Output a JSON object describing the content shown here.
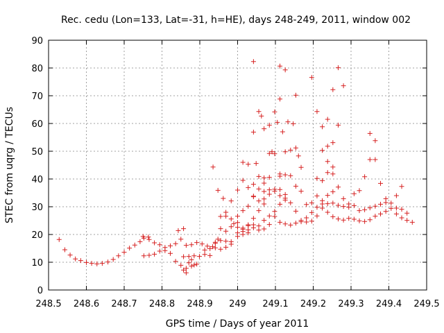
{
  "chart_data": {
    "type": "scatter",
    "title": "Rec. cedu (Lon=133, Lat=-31, h=HE), days 248-249, 2011, window 002",
    "xlabel": "GPS time / Days of year 2011",
    "ylabel": "STEC from uqrg / TECUs",
    "xlim": [
      248.5,
      249.5
    ],
    "ylim": [
      0,
      90
    ],
    "xticks": [
      "248.5",
      "248.6",
      "248.7",
      "248.8",
      "248.9",
      "249",
      "249.1",
      "249.2",
      "249.3",
      "249.4",
      "249.5"
    ],
    "yticks": [
      "0",
      "10",
      "20",
      "30",
      "40",
      "50",
      "60",
      "70",
      "80",
      "90"
    ],
    "grid": true,
    "marker": "plus",
    "marker_color": "#d62020",
    "points": [
      [
        248.528,
        18.2
      ],
      [
        248.543,
        14.5
      ],
      [
        248.557,
        12.6
      ],
      [
        248.571,
        11.2
      ],
      [
        248.585,
        10.6
      ],
      [
        248.6,
        9.9
      ],
      [
        248.614,
        9.6
      ],
      [
        248.628,
        9.4
      ],
      [
        248.642,
        9.6
      ],
      [
        248.657,
        10.1
      ],
      [
        248.671,
        11.0
      ],
      [
        248.685,
        12.3
      ],
      [
        248.7,
        13.6
      ],
      [
        248.714,
        15.1
      ],
      [
        248.728,
        16.2
      ],
      [
        248.742,
        17.4
      ],
      [
        248.75,
        19.3
      ],
      [
        248.764,
        19.1
      ],
      [
        248.752,
        18.7
      ],
      [
        248.766,
        18.2
      ],
      [
        248.78,
        17.0
      ],
      [
        248.794,
        16.3
      ],
      [
        248.808,
        15.3
      ],
      [
        248.822,
        15.9
      ],
      [
        248.836,
        16.7
      ],
      [
        248.85,
        18.3
      ],
      [
        248.864,
        16.1
      ],
      [
        248.878,
        16.3
      ],
      [
        248.892,
        17.1
      ],
      [
        248.906,
        16.6
      ],
      [
        248.92,
        15.8
      ],
      [
        248.752,
        12.3
      ],
      [
        248.766,
        12.5
      ],
      [
        248.78,
        12.9
      ],
      [
        248.794,
        14.0
      ],
      [
        248.808,
        14.2
      ],
      [
        248.822,
        13.2
      ],
      [
        248.836,
        10.3
      ],
      [
        248.85,
        8.9
      ],
      [
        248.864,
        7.8
      ],
      [
        248.878,
        8.6
      ],
      [
        248.892,
        9.3
      ],
      [
        248.843,
        21.4
      ],
      [
        248.857,
        22.1
      ],
      [
        248.857,
        7.2
      ],
      [
        248.864,
        6.2
      ],
      [
        248.871,
        9.8
      ],
      [
        248.878,
        10.9
      ],
      [
        248.885,
        9.0
      ],
      [
        248.857,
        12.0
      ],
      [
        248.871,
        12.1
      ],
      [
        248.885,
        12.3
      ],
      [
        248.899,
        12.1
      ],
      [
        248.913,
        12.8
      ],
      [
        248.927,
        12.4
      ],
      [
        248.934,
        15.6
      ],
      [
        248.941,
        16.8
      ],
      [
        248.948,
        18.3
      ],
      [
        248.913,
        14.4
      ],
      [
        248.927,
        14.9
      ],
      [
        248.941,
        15.2
      ],
      [
        248.955,
        14.7
      ],
      [
        248.969,
        15.4
      ],
      [
        248.983,
        16.5
      ],
      [
        248.941,
        17.2
      ],
      [
        248.955,
        17.8
      ],
      [
        248.969,
        17.6
      ],
      [
        248.983,
        17.4
      ],
      [
        248.935,
        44.3
      ],
      [
        248.948,
        35.9
      ],
      [
        248.962,
        33.0
      ],
      [
        248.955,
        26.5
      ],
      [
        248.969,
        26.6
      ],
      [
        248.983,
        25.6
      ],
      [
        248.969,
        28.0
      ],
      [
        248.983,
        32.1
      ],
      [
        248.955,
        22.1
      ],
      [
        248.969,
        21.2
      ],
      [
        248.983,
        22.8
      ],
      [
        248.99,
        23.9
      ],
      [
        249.0,
        24.3
      ],
      [
        249.014,
        21.9
      ],
      [
        249.028,
        23.5
      ],
      [
        249.042,
        25.8
      ],
      [
        249.056,
        28.6
      ],
      [
        249.07,
        31.0
      ],
      [
        249.0,
        22.6
      ],
      [
        249.014,
        22.3
      ],
      [
        249.028,
        23.2
      ],
      [
        249.042,
        23.5
      ],
      [
        249.056,
        23.1
      ],
      [
        249.07,
        25.1
      ],
      [
        249.084,
        26.7
      ],
      [
        249.098,
        28.3
      ],
      [
        249.112,
        30.9
      ],
      [
        249.126,
        33.1
      ],
      [
        249.0,
        20.6
      ],
      [
        249.014,
        21.1
      ],
      [
        249.028,
        21.7
      ],
      [
        249.042,
        22.4
      ],
      [
        249.056,
        21.6
      ],
      [
        249.07,
        22.0
      ],
      [
        249.084,
        23.6
      ],
      [
        249.0,
        19.3
      ],
      [
        249.014,
        20.0
      ],
      [
        249.028,
        20.6
      ],
      [
        249.0,
        36.0
      ],
      [
        249.014,
        39.5
      ],
      [
        249.028,
        36.9
      ],
      [
        249.042,
        33.8
      ],
      [
        249.056,
        32.1
      ],
      [
        249.07,
        32.8
      ],
      [
        249.084,
        34.5
      ],
      [
        249.098,
        36.3
      ],
      [
        249.112,
        34.0
      ],
      [
        249.126,
        32.4
      ],
      [
        249.0,
        26.6
      ],
      [
        249.014,
        28.6
      ],
      [
        249.028,
        30.2
      ],
      [
        249.042,
        33.6
      ],
      [
        249.056,
        36.4
      ],
      [
        249.07,
        40.4
      ],
      [
        249.084,
        40.6
      ],
      [
        249.098,
        49.1
      ],
      [
        249.112,
        41.0
      ],
      [
        249.126,
        41.5
      ],
      [
        249.14,
        41.2
      ],
      [
        249.154,
        37.4
      ],
      [
        249.168,
        35.6
      ],
      [
        249.014,
        46.0
      ],
      [
        249.028,
        45.3
      ],
      [
        249.042,
        56.9
      ],
      [
        249.049,
        45.6
      ],
      [
        249.056,
        64.3
      ],
      [
        249.063,
        62.7
      ],
      [
        249.07,
        58.1
      ],
      [
        249.084,
        59.4
      ],
      [
        249.091,
        49.8
      ],
      [
        249.098,
        64.2
      ],
      [
        249.105,
        60.4
      ],
      [
        249.112,
        68.8
      ],
      [
        249.119,
        57.0
      ],
      [
        249.126,
        49.8
      ],
      [
        249.14,
        50.4
      ],
      [
        249.147,
        59.9
      ],
      [
        249.154,
        70.2
      ],
      [
        249.133,
        60.6
      ],
      [
        249.042,
        82.3
      ],
      [
        249.112,
        80.7
      ],
      [
        249.126,
        79.3
      ],
      [
        249.154,
        51.2
      ],
      [
        249.161,
        48.3
      ],
      [
        249.168,
        44.2
      ],
      [
        249.112,
        41.8
      ],
      [
        249.07,
        35.5
      ],
      [
        249.084,
        49.2
      ],
      [
        249.042,
        38.1
      ],
      [
        249.056,
        40.9
      ],
      [
        249.07,
        38.5
      ],
      [
        249.084,
        36.1
      ],
      [
        249.098,
        35.6
      ],
      [
        249.112,
        36.2
      ],
      [
        249.126,
        34.4
      ],
      [
        249.14,
        31.4
      ],
      [
        249.154,
        28.4
      ],
      [
        249.168,
        25.1
      ],
      [
        249.182,
        24.5
      ],
      [
        249.196,
        24.8
      ],
      [
        249.21,
        26.7
      ],
      [
        249.224,
        29.5
      ],
      [
        249.238,
        31.1
      ],
      [
        249.252,
        31.3
      ],
      [
        249.266,
        30.5
      ],
      [
        249.098,
        26.5
      ],
      [
        249.112,
        24.4
      ],
      [
        249.126,
        23.8
      ],
      [
        249.14,
        23.4
      ],
      [
        249.154,
        24.1
      ],
      [
        249.168,
        24.6
      ],
      [
        249.182,
        26.0
      ],
      [
        249.196,
        27.9
      ],
      [
        249.21,
        29.8
      ],
      [
        249.224,
        32.2
      ],
      [
        249.238,
        34.1
      ],
      [
        249.252,
        35.4
      ],
      [
        249.182,
        30.8
      ],
      [
        249.196,
        31.4
      ],
      [
        249.21,
        33.9
      ],
      [
        249.224,
        31.0
      ],
      [
        249.238,
        28.0
      ],
      [
        249.252,
        26.4
      ],
      [
        249.266,
        25.6
      ],
      [
        249.28,
        25.2
      ],
      [
        249.294,
        25.8
      ],
      [
        249.308,
        25.5
      ],
      [
        249.322,
        24.9
      ],
      [
        249.336,
        24.7
      ],
      [
        249.35,
        25.3
      ],
      [
        249.364,
        26.6
      ],
      [
        249.378,
        27.4
      ],
      [
        249.392,
        28.3
      ],
      [
        249.406,
        29.4
      ],
      [
        249.42,
        29.5
      ],
      [
        249.434,
        29.1
      ],
      [
        249.448,
        27.7
      ],
      [
        249.28,
        30.1
      ],
      [
        249.294,
        31.0
      ],
      [
        249.308,
        30.4
      ],
      [
        249.322,
        28.6
      ],
      [
        249.336,
        28.9
      ],
      [
        249.35,
        29.6
      ],
      [
        249.364,
        30.2
      ],
      [
        249.378,
        30.9
      ],
      [
        249.392,
        32.9
      ],
      [
        249.406,
        31.3
      ],
      [
        249.42,
        27.4
      ],
      [
        249.434,
        26.0
      ],
      [
        249.448,
        25.1
      ],
      [
        249.462,
        24.4
      ],
      [
        249.196,
        76.6
      ],
      [
        249.21,
        64.3
      ],
      [
        249.224,
        58.8
      ],
      [
        249.238,
        61.5
      ],
      [
        249.252,
        72.2
      ],
      [
        249.266,
        80.1
      ],
      [
        249.28,
        73.6
      ],
      [
        249.266,
        59.4
      ],
      [
        249.252,
        53.1
      ],
      [
        249.238,
        51.8
      ],
      [
        249.224,
        50.3
      ],
      [
        249.238,
        46.3
      ],
      [
        249.252,
        44.3
      ],
      [
        249.238,
        42.3
      ],
      [
        249.252,
        41.8
      ],
      [
        249.224,
        39.4
      ],
      [
        249.21,
        40.2
      ],
      [
        249.266,
        37.1
      ],
      [
        249.28,
        32.9
      ],
      [
        249.294,
        29.8
      ],
      [
        249.308,
        34.7
      ],
      [
        249.322,
        35.8
      ],
      [
        249.336,
        40.8
      ],
      [
        249.35,
        56.4
      ],
      [
        249.364,
        53.8
      ],
      [
        249.364,
        47.0
      ],
      [
        249.35,
        47.0
      ],
      [
        249.378,
        38.4
      ],
      [
        249.392,
        31.5
      ],
      [
        249.42,
        34.0
      ],
      [
        249.434,
        37.3
      ]
    ]
  }
}
